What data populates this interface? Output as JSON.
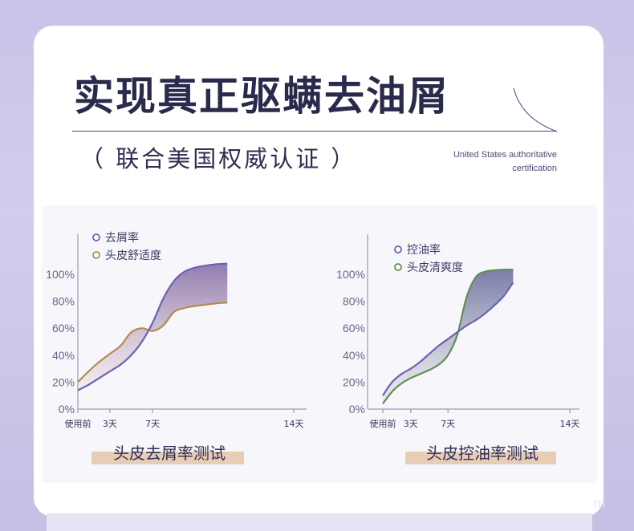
{
  "header": {
    "title": "实现真正驱螨去油屑",
    "subtitle": "（ 联合美国权威认证 ）",
    "english_line1": "United States authoritative",
    "english_line2": "certification"
  },
  "colors": {
    "purple_series": "#6e60b5",
    "gold_series": "#b58a4f",
    "green_series": "#5f8e55",
    "label_bar": "#e8cdb6"
  },
  "chart_data": [
    {
      "type": "area",
      "title": "头皮去屑率测试",
      "categories": [
        "使用前",
        "3天",
        "7天",
        "14天"
      ],
      "y_ticks": [
        "0%",
        "20%",
        "40%",
        "60%",
        "80%",
        "100%"
      ],
      "ylim": [
        0,
        110
      ],
      "legend_position": "top-left",
      "series": [
        {
          "name": "去屑率",
          "color": "#6e60b5",
          "x": [
            0,
            1,
            2,
            3,
            4,
            5,
            6,
            7,
            8,
            9,
            10,
            11,
            12,
            13,
            14
          ],
          "values": [
            14,
            18,
            23,
            28,
            33,
            40,
            50,
            64,
            82,
            95,
            102,
            105,
            106.5,
            107.5,
            108
          ]
        },
        {
          "name": "头皮舒适度",
          "color": "#b58a4f",
          "x": [
            0,
            1,
            2,
            3,
            4,
            5,
            6,
            7,
            8,
            9,
            10,
            11,
            12,
            13,
            14
          ],
          "values": [
            20,
            28,
            35,
            41,
            47,
            57,
            60,
            58,
            62,
            72,
            75,
            76.5,
            77.5,
            78.5,
            79
          ]
        }
      ]
    },
    {
      "type": "area",
      "title": "头皮控油率测试",
      "categories": [
        "使用前",
        "3天",
        "7天",
        "14天"
      ],
      "y_ticks": [
        "0%",
        "20%",
        "40%",
        "60%",
        "80%",
        "100%"
      ],
      "ylim": [
        0,
        110
      ],
      "legend_position": "top-left",
      "series": [
        {
          "name": "控油率",
          "color": "#6e60b5",
          "x": [
            0,
            1,
            2,
            3,
            4,
            5,
            6,
            7,
            8,
            9,
            10,
            11,
            12,
            13,
            14
          ],
          "values": [
            10,
            20,
            26,
            30,
            35,
            41,
            47,
            52,
            57,
            62,
            66,
            71,
            77,
            84,
            94
          ]
        },
        {
          "name": "头皮清爽度",
          "color": "#5f8e55",
          "x": [
            0,
            1,
            2,
            3,
            4,
            5,
            6,
            7,
            8,
            9,
            10,
            11,
            12,
            13,
            14
          ],
          "values": [
            4,
            13,
            19,
            23,
            26,
            29,
            33,
            40,
            55,
            83,
            98,
            102,
            103,
            103.5,
            103.5
          ]
        }
      ]
    }
  ]
}
